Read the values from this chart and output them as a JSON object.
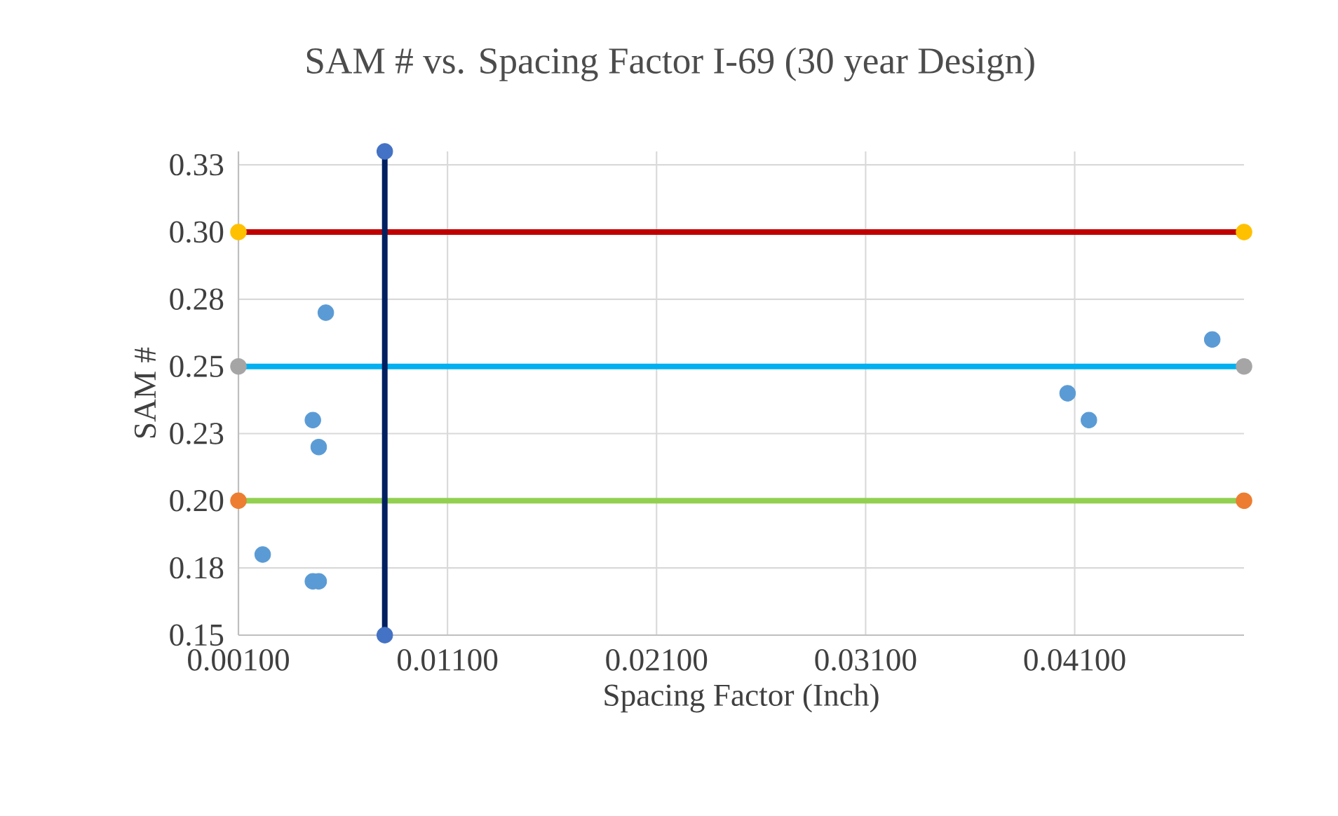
{
  "chart_data": {
    "type": "scatter",
    "title": "SAM # vs. Spacing Factor I-69 (30 year Design)",
    "xlabel": "Spacing Factor (Inch)",
    "ylabel": "SAM #",
    "xlim": [
      0.001,
      0.0491
    ],
    "ylim": [
      0.15,
      0.33
    ],
    "xticks": [
      {
        "value": 0.001,
        "label": "0.00100"
      },
      {
        "value": 0.011,
        "label": "0.01100"
      },
      {
        "value": 0.021,
        "label": "0.02100"
      },
      {
        "value": 0.031,
        "label": "0.03100"
      },
      {
        "value": 0.041,
        "label": "0.04100"
      }
    ],
    "yticks": [
      {
        "value": 0.15,
        "label": "0.15"
      },
      {
        "value": 0.175,
        "label": "0.18"
      },
      {
        "value": 0.2,
        "label": "0.20"
      },
      {
        "value": 0.225,
        "label": "0.23"
      },
      {
        "value": 0.25,
        "label": "0.25"
      },
      {
        "value": 0.275,
        "label": "0.28"
      },
      {
        "value": 0.3,
        "label": "0.30"
      },
      {
        "value": 0.325,
        "label": "0.33"
      }
    ],
    "grid": true,
    "marker": "circle",
    "series": [
      {
        "color": "#5b9bd5",
        "x": [
          0.00216,
          0.00456,
          0.00484,
          0.00518,
          0.00456,
          0.00484,
          0.04066,
          0.04168,
          0.04758
        ],
        "values": [
          0.18,
          0.17,
          0.17,
          0.27,
          0.23,
          0.22,
          0.24,
          0.23,
          0.26
        ]
      },
      {
        "type": "line",
        "marker": "none",
        "color": "#c00000",
        "x": [
          0.001,
          0.0491
        ],
        "values": [
          0.3,
          0.3
        ]
      },
      {
        "color": "#ffc000",
        "x": [
          0.001,
          0.0491
        ],
        "values": [
          0.3,
          0.3
        ]
      },
      {
        "type": "line",
        "marker": "none",
        "color": "#00b0f0",
        "x": [
          0.001,
          0.0491
        ],
        "values": [
          0.25,
          0.25
        ]
      },
      {
        "color": "#a5a5a5",
        "x": [
          0.001,
          0.0491
        ],
        "values": [
          0.25,
          0.25
        ]
      },
      {
        "type": "line",
        "marker": "none",
        "color": "#92d050",
        "x": [
          0.001,
          0.0491
        ],
        "values": [
          0.2,
          0.2
        ]
      },
      {
        "color": "#ed7d31",
        "x": [
          0.001,
          0.0491
        ],
        "values": [
          0.2,
          0.2
        ]
      },
      {
        "type": "line",
        "marker": "none",
        "color": "#002060",
        "x": [
          0.008,
          0.008
        ],
        "values": [
          0.15,
          0.33
        ]
      },
      {
        "color": "#4472c4",
        "x": [
          0.008,
          0.008
        ],
        "values": [
          0.15,
          0.33
        ]
      }
    ]
  }
}
